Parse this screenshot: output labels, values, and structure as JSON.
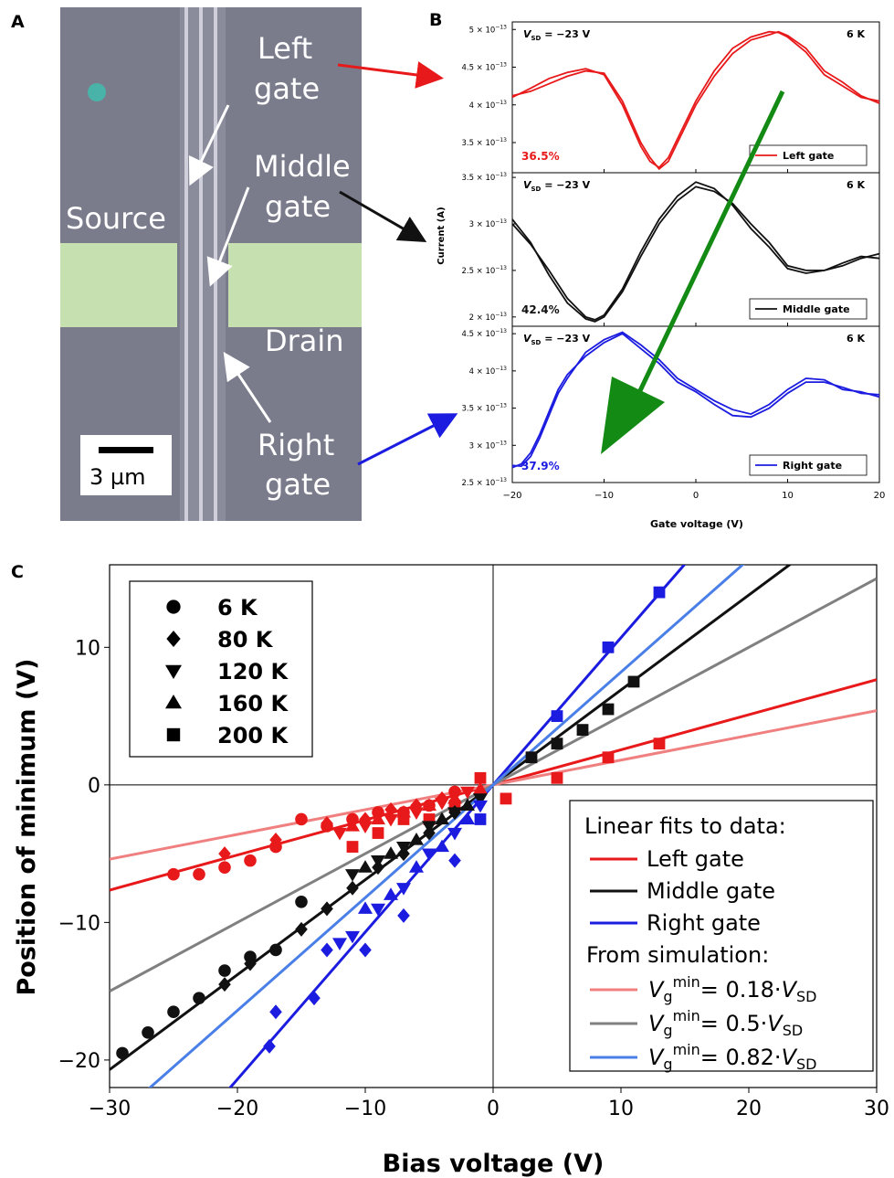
{
  "panel_labels": {
    "a": "A",
    "b": "B",
    "c": "C"
  },
  "micrograph": {
    "left_gate": [
      "Left",
      "gate"
    ],
    "middle_gate": [
      "Middle",
      "gate"
    ],
    "right_gate": [
      "Right",
      "gate"
    ],
    "source": "Source",
    "drain": "Drain",
    "scale_bar": "3 µm"
  },
  "colors": {
    "red": "#e8191a",
    "black": "#111111",
    "blue": "#1c1ce0",
    "sim_red": "#f08080",
    "sim_gray": "#808080",
    "sim_blue": "#4a7fe8",
    "arrow_green": "#138a13",
    "image_bg": "#7a7c8c"
  },
  "chart_data": [
    {
      "type": "line",
      "panel": "B",
      "xlabel": "Gate voltage (V)",
      "ylabel": "Current (A)",
      "xlim": [
        -20,
        20
      ],
      "xticks": [
        -20,
        -10,
        0,
        10,
        20
      ],
      "xtick_labels": [
        "−20",
        "−10",
        "0",
        "10",
        "20"
      ],
      "temperature": "6 K",
      "bias_label": {
        "v": "V",
        "sub": "SD",
        "rest": " = −23 V"
      },
      "subplots": [
        {
          "name": "Left gate",
          "color": "#e8191a",
          "pct": "36.5%",
          "ylim": [
            3.1e-13,
            5.1e-13
          ],
          "ytick_values": [
            3.5e-13,
            4e-13,
            4.5e-13,
            5e-13
          ],
          "ytick_labels": [
            {
              "m": "3.5 × 10",
              "e": "−13"
            },
            {
              "m": "4 × 10",
              "e": "−13"
            },
            {
              "m": "4.5 × 10",
              "e": "−13"
            },
            {
              "m": "5 × 10",
              "e": "−13"
            }
          ],
          "x": [
            -20,
            -18,
            -16,
            -14,
            -12,
            -10,
            -8,
            -6,
            -5,
            -4,
            -3,
            -2,
            0,
            2,
            4,
            6,
            8,
            9,
            10,
            12,
            14,
            16,
            18,
            20
          ],
          "y1": [
            4.1e-13,
            4.22e-13,
            4.35e-13,
            4.43e-13,
            4.48e-13,
            4.4e-13,
            4e-13,
            3.45e-13,
            3.25e-13,
            3.17e-13,
            3.3e-13,
            3.55e-13,
            4.05e-13,
            4.45e-13,
            4.75e-13,
            4.9e-13,
            4.97e-13,
            4.96e-13,
            4.9e-13,
            4.7e-13,
            4.4e-13,
            4.25e-13,
            4.1e-13,
            4.05e-13
          ],
          "y2": [
            4.12e-13,
            4.18e-13,
            4.28e-13,
            4.38e-13,
            4.45e-13,
            4.42e-13,
            4.05e-13,
            3.5e-13,
            3.3e-13,
            3.15e-13,
            3.25e-13,
            3.5e-13,
            4e-13,
            4.38e-13,
            4.68e-13,
            4.86e-13,
            4.93e-13,
            4.97e-13,
            4.92e-13,
            4.75e-13,
            4.45e-13,
            4.3e-13,
            4.12e-13,
            4.02e-13
          ]
        },
        {
          "name": "Middle gate",
          "color": "#111111",
          "pct": "42.4%",
          "ylim": [
            1.9e-13,
            3.55e-13
          ],
          "ytick_values": [
            2e-13,
            2.5e-13,
            3e-13,
            3.5e-13
          ],
          "ytick_labels": [
            {
              "m": "2 × 10",
              "e": "−13"
            },
            {
              "m": "2.5 × 10",
              "e": "−13"
            },
            {
              "m": "3 × 10",
              "e": "−13"
            },
            {
              "m": "3.5 × 10",
              "e": "−13"
            }
          ],
          "x": [
            -20,
            -18,
            -16,
            -14,
            -12,
            -11,
            -10,
            -8,
            -6,
            -4,
            -2,
            0,
            2,
            4,
            6,
            8,
            10,
            12,
            14,
            16,
            18,
            20
          ],
          "y1": [
            3e-13,
            2.78e-13,
            2.5e-13,
            2.2e-13,
            2e-13,
            1.97e-13,
            2.02e-13,
            2.3e-13,
            2.7e-13,
            3.05e-13,
            3.3e-13,
            3.45e-13,
            3.38e-13,
            3.2e-13,
            2.95e-13,
            2.75e-13,
            2.52e-13,
            2.47e-13,
            2.5e-13,
            2.55e-13,
            2.63e-13,
            2.68e-13
          ],
          "y2": [
            3.05e-13,
            2.8e-13,
            2.45e-13,
            2.15e-13,
            1.98e-13,
            1.95e-13,
            2e-13,
            2.27e-13,
            2.65e-13,
            3e-13,
            3.25e-13,
            3.4e-13,
            3.35e-13,
            3.22e-13,
            3e-13,
            2.8e-13,
            2.55e-13,
            2.5e-13,
            2.5e-13,
            2.58e-13,
            2.65e-13,
            2.63e-13
          ]
        },
        {
          "name": "Right gate",
          "color": "#1c1ce0",
          "pct": "37.9%",
          "ylim": [
            2.5e-13,
            4.6e-13
          ],
          "ytick_values": [
            2.5e-13,
            3e-13,
            3.5e-13,
            4e-13,
            4.5e-13
          ],
          "ytick_labels": [
            {
              "m": "2.5 × 10",
              "e": "−13"
            },
            {
              "m": "3 × 10",
              "e": "−13"
            },
            {
              "m": "3.5 × 10",
              "e": "−13"
            },
            {
              "m": "4 × 10",
              "e": "−13"
            },
            {
              "m": "4.5 × 10",
              "e": "−13"
            }
          ],
          "x": [
            -20,
            -19,
            -18,
            -17,
            -16,
            -15,
            -14,
            -12,
            -10,
            -8,
            -6,
            -4,
            -2,
            0,
            2,
            4,
            6,
            8,
            10,
            12,
            14,
            16,
            18,
            20
          ],
          "y1": [
            2.73e-13,
            2.72e-13,
            2.85e-13,
            3.1e-13,
            3.4e-13,
            3.7e-13,
            3.9e-13,
            4.25e-13,
            4.42e-13,
            4.52e-13,
            4.35e-13,
            4.15e-13,
            3.9e-13,
            3.75e-13,
            3.6e-13,
            3.48e-13,
            3.42e-13,
            3.55e-13,
            3.75e-13,
            3.9e-13,
            3.88e-13,
            3.75e-13,
            3.72e-13,
            3.65e-13
          ],
          "y2": [
            2.7e-13,
            2.75e-13,
            2.9e-13,
            3.15e-13,
            3.45e-13,
            3.75e-13,
            3.95e-13,
            4.2e-13,
            4.38e-13,
            4.5e-13,
            4.3e-13,
            4.1e-13,
            3.85e-13,
            3.72e-13,
            3.55e-13,
            3.4e-13,
            3.38e-13,
            3.5e-13,
            3.7e-13,
            3.85e-13,
            3.85e-13,
            3.78e-13,
            3.7e-13,
            3.68e-13
          ]
        }
      ]
    },
    {
      "type": "scatter",
      "panel": "C",
      "xlabel": "Bias voltage (V)",
      "ylabel": "Position of minimum (V)",
      "xlim": [
        -30,
        30
      ],
      "ylim": [
        -22,
        16
      ],
      "xticks": [
        -30,
        -20,
        -10,
        0,
        10,
        20,
        30
      ],
      "xtick_labels": [
        "−30",
        "−20",
        "−10",
        "0",
        "10",
        "20",
        "30"
      ],
      "yticks": [
        -20,
        -10,
        0,
        10
      ],
      "ytick_labels": [
        "−20",
        "−10",
        "0",
        "10"
      ],
      "legend_markers": [
        {
          "marker": "circle",
          "label": "6 K"
        },
        {
          "marker": "diamond",
          "label": "80 K"
        },
        {
          "marker": "triangle-down",
          "label": "120 K"
        },
        {
          "marker": "triangle-up",
          "label": "160 K"
        },
        {
          "marker": "square",
          "label": "200 K"
        }
      ],
      "legend_lines_title": "Linear fits to data:",
      "legend_sim_title": "From simulation:",
      "legend_lines": [
        {
          "label": "Left gate",
          "color": "#e8191a"
        },
        {
          "label": "Middle gate",
          "color": "#111111"
        },
        {
          "label": "Right gate",
          "color": "#1c1ce0"
        }
      ],
      "legend_sim": [
        {
          "prefix": "V",
          "sub": "g",
          "sup": "min",
          "mid": "= 0.18·",
          "v": "V",
          "vsub": "SD",
          "color": "#f08080"
        },
        {
          "prefix": "V",
          "sub": "g",
          "sup": "min",
          "mid": "= 0.5·",
          "v": "V",
          "vsub": "SD",
          "color": "#808080"
        },
        {
          "prefix": "V",
          "sub": "g",
          "sup": "min",
          "mid": "= 0.82·",
          "v": "V",
          "vsub": "SD",
          "color": "#4a7fe8"
        }
      ],
      "lines": [
        {
          "name": "Left gate fit",
          "slope": 0.255,
          "intercept": 0,
          "color": "#e8191a"
        },
        {
          "name": "Middle gate fit",
          "slope": 0.69,
          "intercept": 0,
          "color": "#111111"
        },
        {
          "name": "Right gate fit",
          "slope": 1.07,
          "intercept": 0,
          "color": "#1c1ce0"
        },
        {
          "name": "simulation 0.18",
          "slope": 0.18,
          "intercept": 0,
          "color": "#f08080"
        },
        {
          "name": "simulation 0.5",
          "slope": 0.5,
          "intercept": 0,
          "color": "#808080"
        },
        {
          "name": "simulation 0.82",
          "slope": 0.82,
          "intercept": 0,
          "color": "#4a7fe8"
        }
      ],
      "series": [
        {
          "gate": "Left",
          "color": "#e8191a",
          "marker": "circle",
          "points": [
            [
              -25,
              -6.5
            ],
            [
              -23,
              -6.5
            ],
            [
              -21,
              -6
            ],
            [
              -19,
              -5.5
            ],
            [
              -17,
              -4.5
            ],
            [
              -15,
              -2.5
            ],
            [
              -13,
              -3
            ],
            [
              -11,
              -2.5
            ],
            [
              -9,
              -2
            ],
            [
              -7,
              -2
            ],
            [
              -5,
              -1.5
            ],
            [
              -3,
              -0.5
            ]
          ]
        },
        {
          "gate": "Left",
          "color": "#e8191a",
          "marker": "diamond",
          "points": [
            [
              -21,
              -5
            ],
            [
              -17,
              -4
            ],
            [
              -13,
              -2.8
            ],
            [
              -10,
              -2.5
            ],
            [
              -8,
              -1.8
            ],
            [
              -6,
              -1.5
            ],
            [
              -4,
              -1
            ]
          ]
        },
        {
          "gate": "Left",
          "color": "#e8191a",
          "marker": "triangle-down",
          "points": [
            [
              -12,
              -3.5
            ],
            [
              -10,
              -3
            ],
            [
              -8,
              -2.5
            ],
            [
              -6,
              -2
            ],
            [
              -4,
              -1.3
            ],
            [
              -2,
              -0.5
            ]
          ]
        },
        {
          "gate": "Left",
          "color": "#e8191a",
          "marker": "triangle-up",
          "points": [
            [
              -11,
              -3
            ],
            [
              -9,
              -2.5
            ],
            [
              -7,
              -2
            ],
            [
              -5,
              -1.5
            ],
            [
              -3,
              -1
            ],
            [
              -1,
              -0.3
            ]
          ]
        },
        {
          "gate": "Left",
          "color": "#e8191a",
          "marker": "square",
          "points": [
            [
              -11,
              -4.5
            ],
            [
              -9,
              -3.5
            ],
            [
              -7,
              -2.5
            ],
            [
              -5,
              -2.5
            ],
            [
              -3,
              -1.5
            ],
            [
              -1,
              0.5
            ],
            [
              1,
              -1
            ],
            [
              5,
              0.5
            ],
            [
              9,
              2
            ],
            [
              13,
              3
            ]
          ]
        },
        {
          "gate": "Middle",
          "color": "#111111",
          "marker": "circle",
          "points": [
            [
              -29,
              -19.5
            ],
            [
              -27,
              -18
            ],
            [
              -25,
              -16.5
            ],
            [
              -23,
              -15.5
            ],
            [
              -21,
              -13.5
            ],
            [
              -19,
              -12.5
            ],
            [
              -17,
              -12
            ],
            [
              -15,
              -8.5
            ]
          ]
        },
        {
          "gate": "Middle",
          "color": "#111111",
          "marker": "diamond",
          "points": [
            [
              -21,
              -14.5
            ],
            [
              -19,
              -13
            ],
            [
              -15,
              -10.5
            ],
            [
              -13,
              -9
            ],
            [
              -11,
              -7.5
            ],
            [
              -9,
              -6
            ],
            [
              -7,
              -5
            ],
            [
              -5,
              -3.5
            ],
            [
              -3,
              -2
            ]
          ]
        },
        {
          "gate": "Middle",
          "color": "#111111",
          "marker": "triangle-down",
          "points": [
            [
              -11,
              -6.5
            ],
            [
              -9,
              -5.5
            ],
            [
              -7,
              -4.5
            ],
            [
              -5,
              -3
            ],
            [
              -3,
              -2
            ],
            [
              -1,
              -1
            ]
          ]
        },
        {
          "gate": "Middle",
          "color": "#111111",
          "marker": "triangle-up",
          "points": [
            [
              -10,
              -6
            ],
            [
              -8,
              -5
            ],
            [
              -6,
              -4
            ],
            [
              -4,
              -2.5
            ],
            [
              -2,
              -1.5
            ]
          ]
        },
        {
          "gate": "Middle",
          "color": "#111111",
          "marker": "square",
          "points": [
            [
              3,
              2
            ],
            [
              5,
              3
            ],
            [
              7,
              4
            ],
            [
              9,
              5.5
            ],
            [
              11,
              7.5
            ]
          ]
        },
        {
          "gate": "Right",
          "color": "#1c1ce0",
          "marker": "diamond",
          "points": [
            [
              -17.5,
              -19
            ],
            [
              -17,
              -16.5
            ],
            [
              -14,
              -15.5
            ],
            [
              -13,
              -12
            ],
            [
              -10,
              -12
            ],
            [
              -7,
              -9.5
            ],
            [
              -3,
              -5.5
            ]
          ]
        },
        {
          "gate": "Right",
          "color": "#1c1ce0",
          "marker": "triangle-down",
          "points": [
            [
              -12,
              -11.5
            ],
            [
              -11,
              -11
            ],
            [
              -9,
              -9
            ],
            [
              -7,
              -7.5
            ],
            [
              -5,
              -5
            ],
            [
              -3,
              -3.5
            ],
            [
              -1,
              -1.5
            ]
          ]
        },
        {
          "gate": "Right",
          "color": "#1c1ce0",
          "marker": "triangle-up",
          "points": [
            [
              -10,
              -9
            ],
            [
              -8,
              -8
            ],
            [
              -6,
              -6
            ],
            [
              -4,
              -4.5
            ],
            [
              -2,
              -2.5
            ]
          ]
        },
        {
          "gate": "Right",
          "color": "#1c1ce0",
          "marker": "square",
          "points": [
            [
              -1,
              -2.5
            ],
            [
              5,
              5
            ],
            [
              9,
              10
            ],
            [
              13,
              14
            ]
          ]
        }
      ]
    }
  ]
}
